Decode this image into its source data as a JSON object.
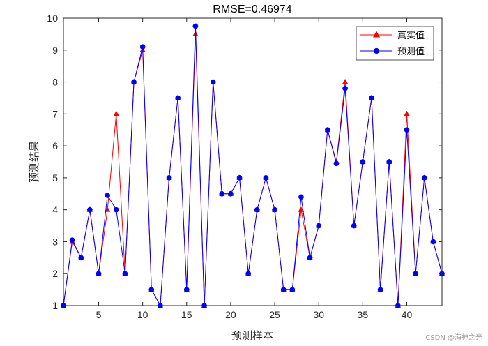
{
  "chart_data": {
    "type": "line",
    "title": "RMSE=0.46974",
    "xlabel": "预测样本",
    "ylabel": "预测结果",
    "xlim": [
      1,
      44
    ],
    "ylim": [
      1,
      10
    ],
    "xticks": [
      5,
      10,
      15,
      20,
      25,
      30,
      35,
      40
    ],
    "yticks": [
      1,
      2,
      3,
      4,
      5,
      6,
      7,
      8,
      9,
      10
    ],
    "grid": false,
    "legend_position": "top-right",
    "x": [
      1,
      2,
      3,
      4,
      5,
      6,
      7,
      8,
      9,
      10,
      11,
      12,
      13,
      14,
      15,
      16,
      17,
      18,
      19,
      20,
      21,
      22,
      23,
      24,
      25,
      26,
      27,
      28,
      29,
      30,
      31,
      32,
      33,
      34,
      35,
      36,
      37,
      38,
      39,
      40,
      41,
      42,
      43,
      44
    ],
    "series": [
      {
        "name": "真实值",
        "color": "#ff0000",
        "marker": "triangle",
        "values": [
          1,
          3,
          2.5,
          4,
          2,
          4,
          7,
          2,
          8,
          9,
          1.5,
          1,
          5,
          7.5,
          1.5,
          9.5,
          1,
          8,
          4.5,
          4.5,
          5,
          2,
          4,
          5,
          4,
          1.5,
          1.5,
          4,
          2.5,
          3.5,
          6.5,
          5.5,
          8,
          3.5,
          5.5,
          7.5,
          1.5,
          5.5,
          1,
          7,
          2,
          5,
          3,
          2
        ]
      },
      {
        "name": "预测值",
        "color": "#0000ff",
        "marker": "circle",
        "values": [
          1,
          3.05,
          2.5,
          4,
          2,
          4.45,
          4,
          2,
          8,
          9.1,
          1.5,
          1,
          5,
          7.5,
          1.5,
          9.75,
          1,
          8,
          4.5,
          4.5,
          5,
          2,
          4,
          5,
          4,
          1.5,
          1.5,
          4.4,
          2.5,
          3.5,
          6.5,
          5.45,
          7.8,
          3.5,
          5.5,
          7.5,
          1.5,
          5.5,
          1,
          6.5,
          2,
          5,
          3,
          2
        ]
      }
    ]
  },
  "watermark": "CSDN @海神之光"
}
